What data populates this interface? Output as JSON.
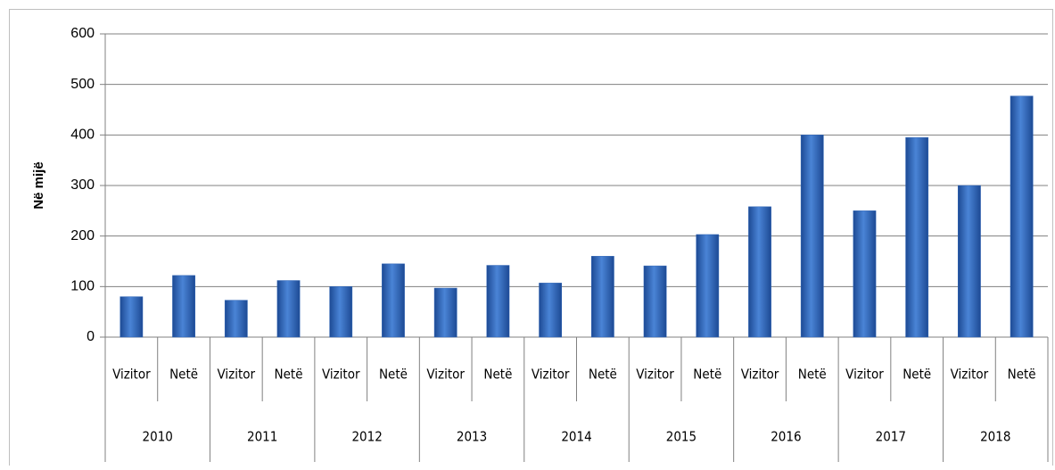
{
  "chart_data": {
    "type": "bar",
    "ylabel": "Në mijë",
    "categories": [
      "Vizitor",
      "Netë",
      "Vizitor",
      "Netë",
      "Vizitor",
      "Netë",
      "Vizitor",
      "Netë",
      "Vizitor",
      "Netë",
      "Vizitor",
      "Netë",
      "Vizitor",
      "Netë",
      "Vizitor",
      "Netë",
      "Vizitor",
      "Netë"
    ],
    "groups": [
      "2010",
      "2011",
      "2012",
      "2013",
      "2014",
      "2015",
      "2016",
      "2017",
      "2018"
    ],
    "values": [
      80,
      122,
      73,
      112,
      100,
      145,
      97,
      142,
      107,
      160,
      141,
      203,
      258,
      400,
      250,
      395,
      300,
      477
    ],
    "color": "#2e64b5",
    "ylim": [
      0,
      600
    ],
    "yticks": [
      0,
      100,
      200,
      300,
      400,
      500,
      600
    ],
    "grid": true
  }
}
